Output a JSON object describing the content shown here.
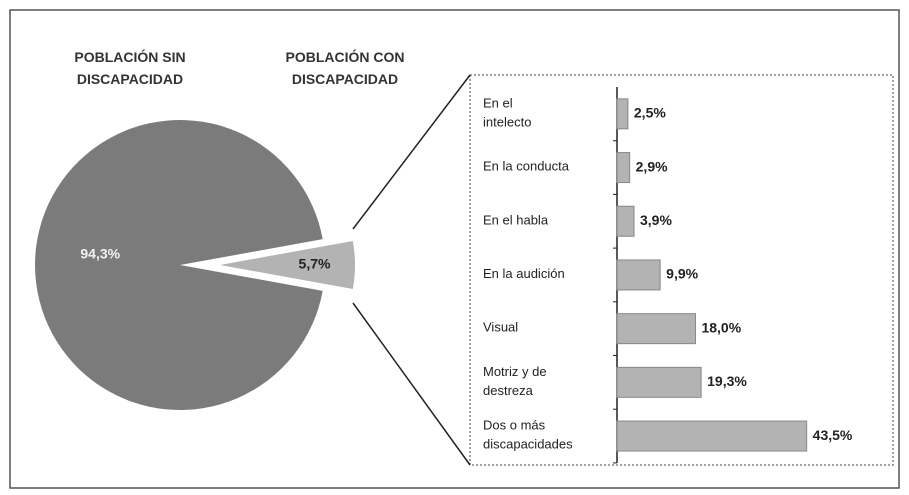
{
  "chart_data": [
    {
      "type": "pie",
      "categories": [
        "POBLACIÓN SIN DISCAPACIDAD",
        "POBLACIÓN CON DISCAPACIDAD"
      ],
      "values": [
        94.3,
        5.7
      ],
      "value_labels": [
        "94,3%",
        "5,7%"
      ],
      "colors": [
        "#7b7b7b",
        "#b3b3b3"
      ]
    },
    {
      "type": "bar",
      "orientation": "horizontal",
      "categories": [
        "En el intelecto",
        "En la conducta",
        "En el habla",
        "En la audición",
        "Visual",
        "Motriz y de destreza",
        "Dos o más discapacidades"
      ],
      "values": [
        2.5,
        2.9,
        3.9,
        9.9,
        18.0,
        19.3,
        43.5
      ],
      "value_labels": [
        "2,5%",
        "2,9%",
        "3,9%",
        "9,9%",
        "18,0%",
        "19,3%",
        "43,5%"
      ],
      "color": "#b3b3b3",
      "xlim": [
        0,
        50
      ]
    }
  ]
}
